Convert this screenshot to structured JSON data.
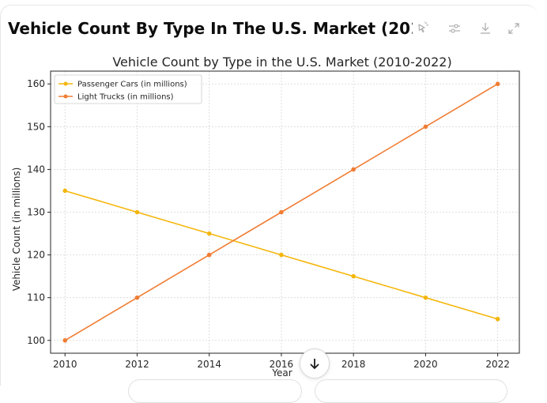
{
  "header": {
    "title": "Vehicle Count By Type In The U.S. Market (2010-2..."
  },
  "toolbar": [
    {
      "icon": "interactive-chart-icon"
    },
    {
      "icon": "settings-sliders-icon"
    },
    {
      "icon": "download-icon"
    },
    {
      "icon": "expand-icon"
    }
  ],
  "scroll_button": {
    "icon": "arrow-down-icon"
  },
  "colors": {
    "passenger": "#f5b60c",
    "trucks": "#f07d33",
    "grid": "#d6d6d6"
  },
  "chart_data": {
    "type": "line",
    "title": "Vehicle Count by Type in the U.S. Market (2010-2022)",
    "xlabel": "Year",
    "ylabel": "Vehicle Count (in millions)",
    "x": [
      2010,
      2012,
      2014,
      2016,
      2018,
      2020,
      2022
    ],
    "xlim": [
      2009.6,
      2022.6
    ],
    "ylim": [
      97,
      163
    ],
    "yticks": [
      100,
      110,
      120,
      130,
      140,
      150,
      160
    ],
    "grid": true,
    "legend_position": "upper-left",
    "series": [
      {
        "name": "Passenger Cars (in millions)",
        "values": [
          135,
          130,
          125,
          120,
          115,
          110,
          105
        ]
      },
      {
        "name": "Light Trucks (in millions)",
        "values": [
          100,
          110,
          120,
          130,
          140,
          150,
          160
        ]
      }
    ]
  }
}
